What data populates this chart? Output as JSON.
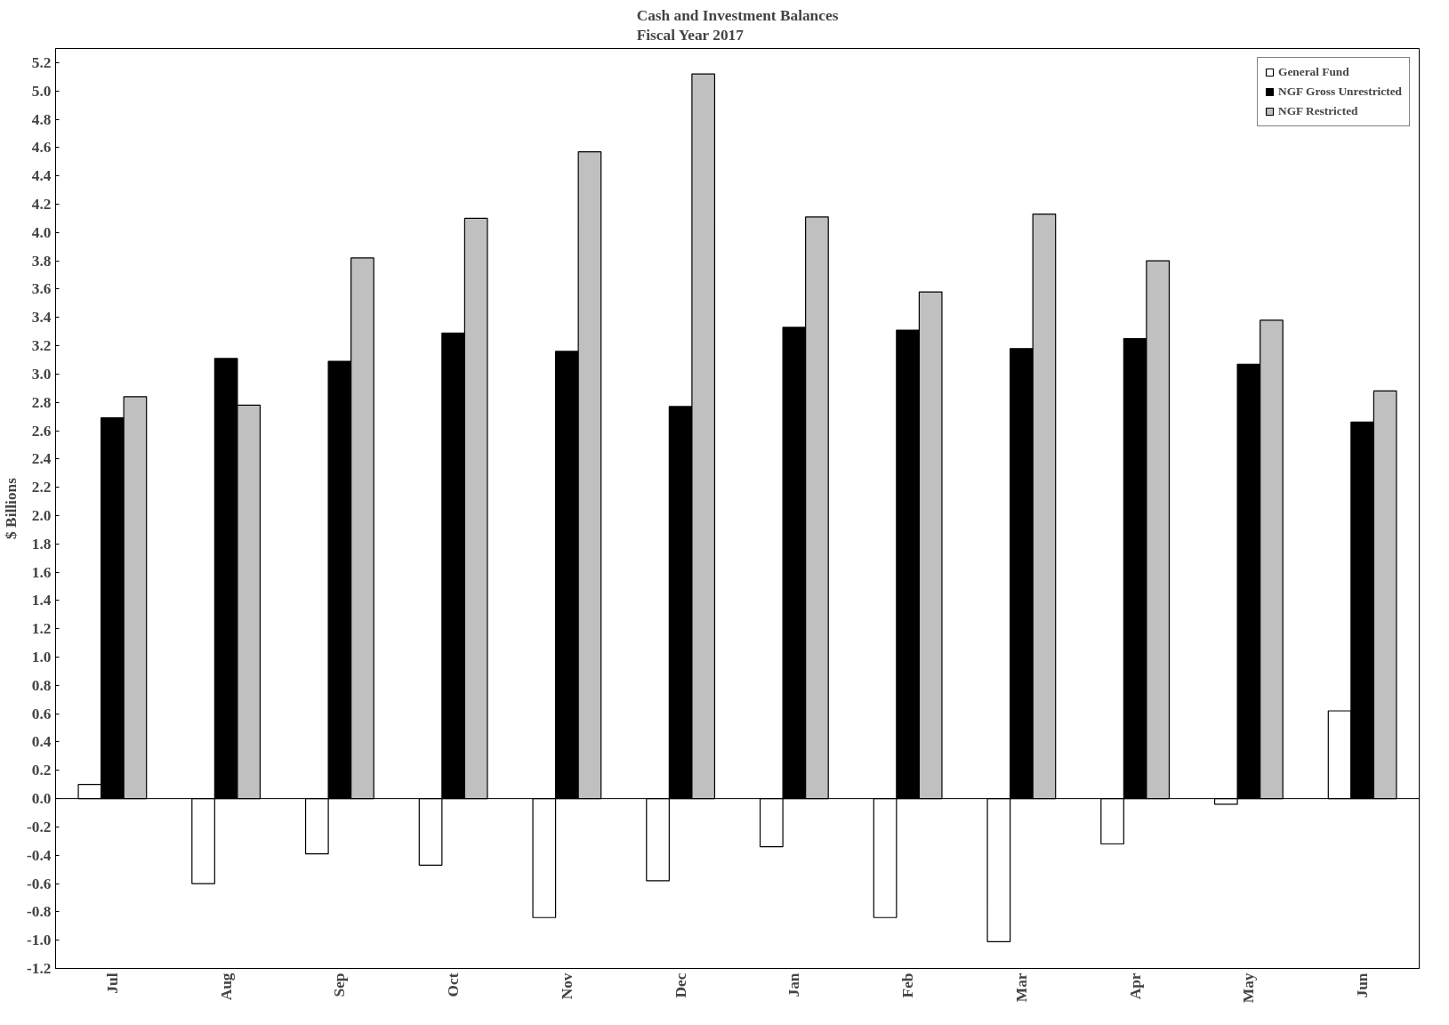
{
  "chart_data": {
    "type": "bar",
    "title": "Cash and Investment Balances\nFiscal Year 2017",
    "ylabel": "$ Billions",
    "categories": [
      "Jul",
      "Aug",
      "Sep",
      "Oct",
      "Nov",
      "Dec",
      "Jan",
      "Feb",
      "Mar",
      "Apr",
      "May",
      "Jun"
    ],
    "series": [
      {
        "name": "General Fund",
        "color": "#ffffff",
        "values": [
          0.1,
          -0.6,
          -0.39,
          -0.47,
          -0.84,
          -0.58,
          -0.34,
          -0.84,
          -1.01,
          -0.32,
          -0.04,
          0.62
        ]
      },
      {
        "name": "NGF Gross Unrestricted",
        "color": "#000000",
        "values": [
          2.69,
          3.11,
          3.09,
          3.29,
          3.16,
          2.77,
          3.33,
          3.31,
          3.18,
          3.25,
          3.07,
          2.66
        ]
      },
      {
        "name": "NGF Restricted",
        "color": "#c0c0c0",
        "values": [
          2.84,
          2.78,
          3.82,
          4.1,
          4.57,
          5.12,
          4.11,
          3.58,
          4.13,
          3.8,
          3.38,
          2.88
        ]
      }
    ],
    "ylim": [
      -1.2,
      5.3
    ],
    "yticks": [
      {
        "value": -1.2,
        "label": "-1.2"
      },
      {
        "value": -1.0,
        "label": "-1.0"
      },
      {
        "value": -0.8,
        "label": "-0.8"
      },
      {
        "value": -0.6,
        "label": "-0.6"
      },
      {
        "value": -0.4,
        "label": "-0.4"
      },
      {
        "value": -0.2,
        "label": "-0.2"
      },
      {
        "value": 0,
        "label": "0.0"
      },
      {
        "value": 0.2,
        "label": "0.2"
      },
      {
        "value": 0.4,
        "label": "0.4"
      },
      {
        "value": 0.6,
        "label": "0.6"
      },
      {
        "value": 0.8,
        "label": "0.8"
      },
      {
        "value": 1.0,
        "label": "1.0"
      },
      {
        "value": 1.2,
        "label": "1.2"
      },
      {
        "value": 1.4,
        "label": "1.4"
      },
      {
        "value": 1.6,
        "label": "1.6"
      },
      {
        "value": 1.8,
        "label": "1.8"
      },
      {
        "value": 2.0,
        "label": "2.0"
      },
      {
        "value": 2.2,
        "label": "2.2"
      },
      {
        "value": 2.4,
        "label": "2.4"
      },
      {
        "value": 2.6,
        "label": "2.6"
      },
      {
        "value": 2.8,
        "label": "2.8"
      },
      {
        "value": 3.0,
        "label": "3.0"
      },
      {
        "value": 3.2,
        "label": "3.2"
      },
      {
        "value": 3.4,
        "label": "3.4"
      },
      {
        "value": 3.6,
        "label": "3.6"
      },
      {
        "value": 3.8,
        "label": "3.8"
      },
      {
        "value": 4.0,
        "label": "4.0"
      },
      {
        "value": 4.2,
        "label": "4.2"
      },
      {
        "value": 4.4,
        "label": "4.4"
      },
      {
        "value": 4.6,
        "label": "4.6"
      },
      {
        "value": 4.8,
        "label": "4.8"
      },
      {
        "value": 5.0,
        "label": "5.0"
      },
      {
        "value": 5.2,
        "label": "5.2"
      }
    ],
    "ref_lines": [
      {
        "axis": "y",
        "value": 0
      }
    ],
    "grid": false,
    "legend": "top right"
  }
}
